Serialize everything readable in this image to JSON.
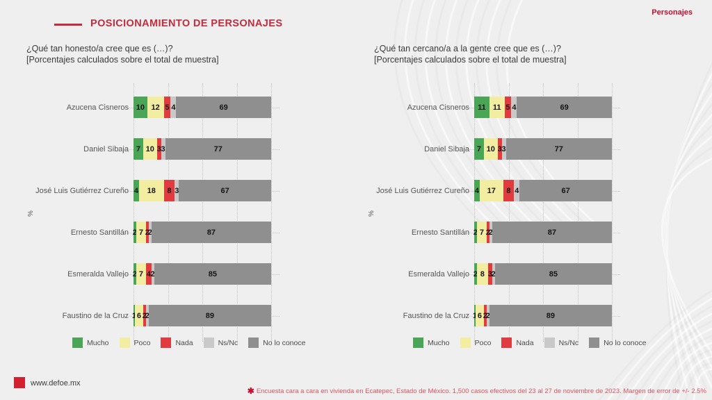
{
  "header": {
    "title": "POSICIONAMIENTO DE PERSONAJES",
    "corner_label": "Personajes"
  },
  "colors": {
    "accent_red": "#C42B3C",
    "corner_red": "#C30F2E",
    "note_red": "#DC5360",
    "background": "#EFEFEF",
    "mucho_green": "#4BA557",
    "poco_yellow": "#F3EDA1",
    "nada_red": "#E03C3F",
    "nsnc_gray": "#C9C9C9",
    "noconoce_gray": "#8F8F8F"
  },
  "legend": [
    {
      "label": "Mucho",
      "color": "#4BA557"
    },
    {
      "label": "Poco",
      "color": "#F3EDA1"
    },
    {
      "label": "Nada",
      "color": "#E03C3F"
    },
    {
      "label": "Ns/Nc",
      "color": "#C9C9C9"
    },
    {
      "label": "No lo conoce",
      "color": "#8F8F8F"
    }
  ],
  "chart_data": [
    {
      "type": "bar",
      "orientation": "horizontal",
      "stacked": true,
      "title": "¿Qué tan honesto/a cree que es (…)?",
      "subtitle": "[Porcentajes calculados sobre el total de muestra]",
      "ylabel": "%",
      "xlim": [
        0,
        100
      ],
      "gridlines": [
        0,
        25,
        50,
        75,
        100
      ],
      "grid": "dotted",
      "legend_position": "bottom",
      "categories": [
        "Azucena Cisneros",
        "Daniel Sibaja",
        "José Luis Gutiérrez Cureño",
        "Ernesto Santillán",
        "Esmeralda Vallejo",
        "Faustino de la Cruz"
      ],
      "series": [
        {
          "name": "Mucho",
          "values": [
            10,
            7,
            4,
            2,
            2,
            1
          ]
        },
        {
          "name": "Poco",
          "values": [
            12,
            10,
            18,
            7,
            7,
            6
          ]
        },
        {
          "name": "Nada",
          "values": [
            5,
            3,
            8,
            2,
            4,
            2
          ]
        },
        {
          "name": "Ns/Nc",
          "values": [
            4,
            3,
            3,
            2,
            2,
            2
          ]
        },
        {
          "name": "No lo conoce",
          "values": [
            69,
            77,
            67,
            87,
            85,
            89
          ]
        }
      ]
    },
    {
      "type": "bar",
      "orientation": "horizontal",
      "stacked": true,
      "title": "¿Qué tan cercano/a a la gente cree que es (…)?",
      "subtitle": "[Porcentajes calculados sobre el total de muestra]",
      "ylabel": "%",
      "xlim": [
        0,
        100
      ],
      "gridlines": [
        0,
        25,
        50,
        75,
        100
      ],
      "grid": "dotted",
      "legend_position": "bottom",
      "categories": [
        "Azucena Cisneros",
        "Daniel Sibaja",
        "José Luis Gutiérrez Cureño",
        "Ernesto Santillán",
        "Esmeralda Vallejo",
        "Faustino de la Cruz"
      ],
      "series": [
        {
          "name": "Mucho",
          "values": [
            11,
            7,
            4,
            2,
            2,
            1
          ]
        },
        {
          "name": "Poco",
          "values": [
            11,
            10,
            17,
            7,
            8,
            6
          ]
        },
        {
          "name": "Nada",
          "values": [
            5,
            3,
            8,
            2,
            3,
            2
          ]
        },
        {
          "name": "Ns/Nc",
          "values": [
            4,
            3,
            4,
            2,
            2,
            2
          ]
        },
        {
          "name": "No lo conoce",
          "values": [
            69,
            77,
            67,
            87,
            85,
            89
          ]
        }
      ]
    }
  ],
  "footer": {
    "website": "www.defoe.mx",
    "note_marker": "✱",
    "note": "Encuesta cara a cara en vivienda en Ecatepec, Estado de México. 1,500 casos efectivos del 23 al 27 de noviembre de 2023. Margen de error de +/- 2.5%"
  }
}
